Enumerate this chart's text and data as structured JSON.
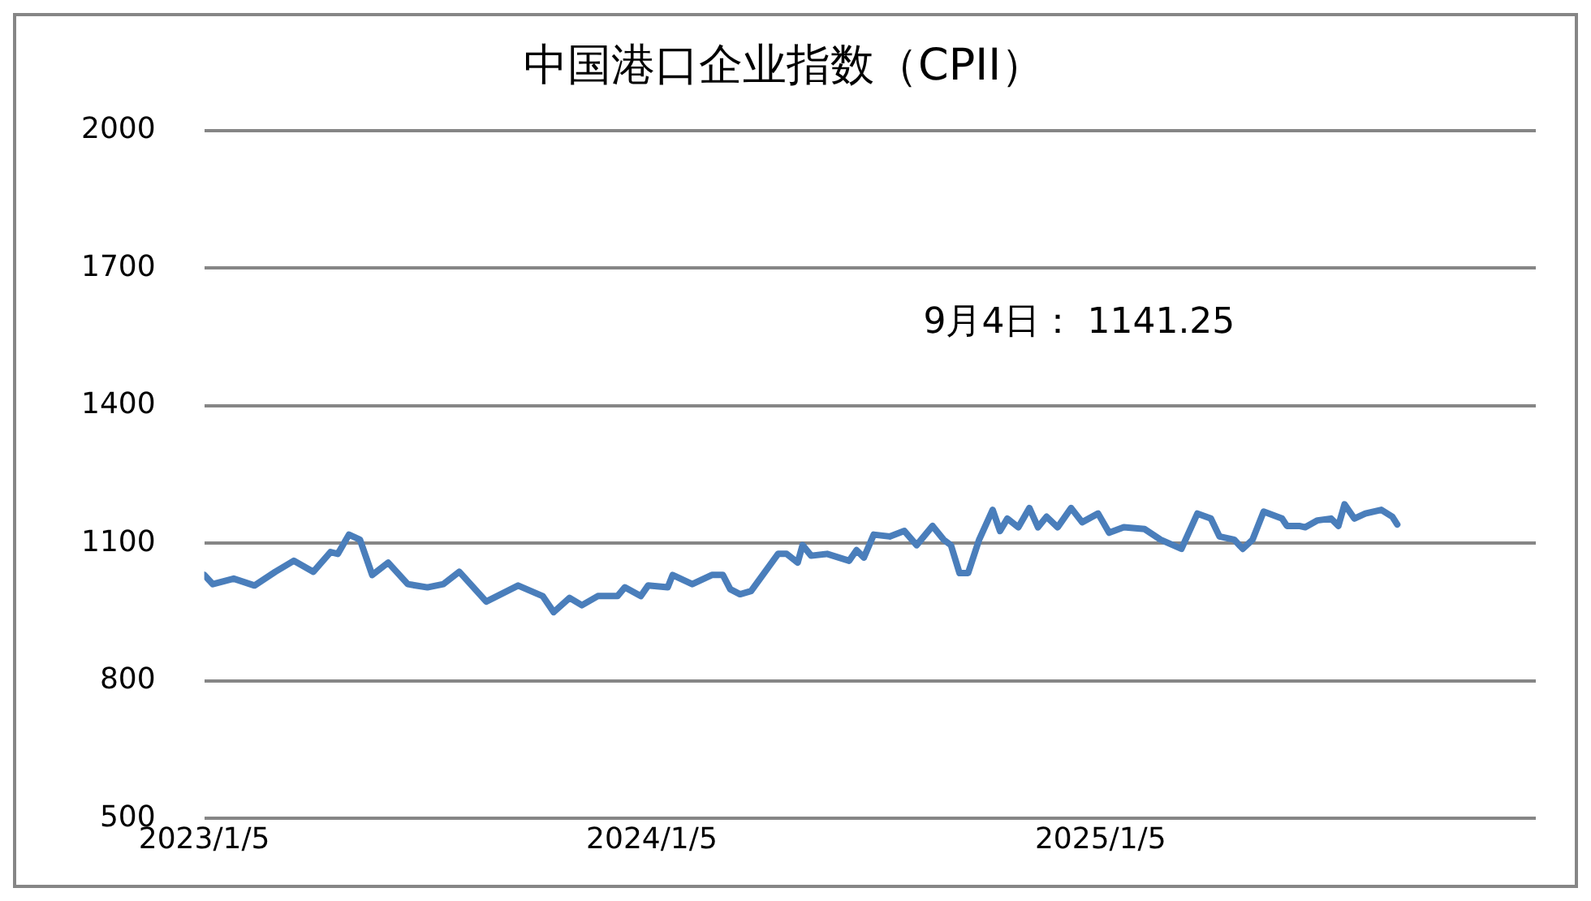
{
  "chart_data": {
    "type": "line",
    "title": "中国港口企业指数（CPII）",
    "annotations": [
      "9月4日： 1141.25"
    ],
    "x": [
      "2023-01-05",
      "2023-01-12",
      "2023-01-29",
      "2023-02-15",
      "2023-03-04",
      "2023-03-19",
      "2023-04-04",
      "2023-04-18",
      "2023-04-24",
      "2023-05-03",
      "2023-05-12",
      "2023-05-22",
      "2023-06-04",
      "2023-06-20",
      "2023-07-06",
      "2023-07-19",
      "2023-08-01",
      "2023-08-23",
      "2023-09-18",
      "2023-10-08",
      "2023-10-17",
      "2023-10-30",
      "2023-11-09",
      "2023-11-22",
      "2023-12-08",
      "2023-12-14",
      "2023-12-27",
      "2024-01-02",
      "2024-01-18",
      "2024-01-22",
      "2024-02-07",
      "2024-02-23",
      "2024-03-03",
      "2024-03-09",
      "2024-03-17",
      "2024-03-26",
      "2024-04-17",
      "2024-04-24",
      "2024-05-03",
      "2024-05-07",
      "2024-05-14",
      "2024-05-27",
      "2024-06-14",
      "2024-06-20",
      "2024-06-26",
      "2024-07-04",
      "2024-07-17",
      "2024-07-29",
      "2024-08-08",
      "2024-08-21",
      "2024-08-30",
      "2024-09-05",
      "2024-09-12",
      "2024-09-19",
      "2024-09-28",
      "2024-10-09",
      "2024-10-15",
      "2024-10-21",
      "2024-10-30",
      "2024-11-08",
      "2024-11-15",
      "2024-11-22",
      "2024-12-01",
      "2024-12-12",
      "2024-12-21",
      "2025-01-03",
      "2025-01-12",
      "2025-01-24",
      "2025-02-10",
      "2025-02-23",
      "2025-03-12",
      "2025-03-25",
      "2025-04-05",
      "2025-04-12",
      "2025-04-24",
      "2025-05-01",
      "2025-05-09",
      "2025-05-18",
      "2025-06-02",
      "2025-06-06",
      "2025-06-16",
      "2025-06-21",
      "2025-07-01",
      "2025-07-12",
      "2025-07-18",
      "2025-07-23",
      "2025-07-31",
      "2025-08-09",
      "2025-08-22",
      "2025-08-31",
      "2025-09-04"
    ],
    "series": [
      {
        "color": "#4a7ebb",
        "values": [
          1031,
          1011,
          1023,
          1008,
          1038,
          1062,
          1038,
          1081,
          1077,
          1119,
          1108,
          1031,
          1058,
          1011,
          1004,
          1011,
          1038,
          973,
          1008,
          985,
          950,
          981,
          965,
          985,
          985,
          1004,
          985,
          1008,
          1004,
          1031,
          1011,
          1031,
          1031,
          1000,
          989,
          996,
          1077,
          1077,
          1058,
          1096,
          1073,
          1077,
          1062,
          1085,
          1069,
          1119,
          1115,
          1127,
          1096,
          1138,
          1108,
          1096,
          1035,
          1035,
          1108,
          1173,
          1127,
          1154,
          1135,
          1177,
          1135,
          1158,
          1135,
          1177,
          1146,
          1165,
          1123,
          1135,
          1131,
          1108,
          1088,
          1165,
          1154,
          1115,
          1108,
          1088,
          1108,
          1169,
          1154,
          1138,
          1138,
          1135,
          1150,
          1154,
          1138,
          1185,
          1154,
          1165,
          1173,
          1158,
          1141.25
        ]
      }
    ],
    "xlim": [
      "2023-01-05",
      "2025-12-26"
    ],
    "xticks": [
      {
        "value": "2023-01-05",
        "label": "2023/1/5"
      },
      {
        "value": "2024-01-05",
        "label": "2024/1/5"
      },
      {
        "value": "2025-01-05",
        "label": "2025/1/5"
      }
    ],
    "ylim": [
      500,
      2000
    ],
    "yticks": [
      500,
      800,
      1100,
      1400,
      1700,
      2000
    ],
    "grid": "y",
    "legend": false,
    "marker": "none",
    "line_style": "solid"
  }
}
